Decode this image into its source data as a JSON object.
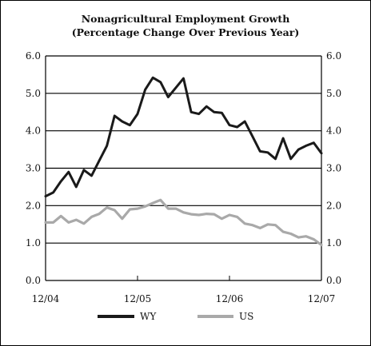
{
  "chart_data": {
    "type": "line",
    "title": "Nonagricultural Employment Growth",
    "subtitle": "(Percentage Change Over Previous Year)",
    "xlabel": "",
    "ylabel": "",
    "ylim": [
      0,
      6
    ],
    "y_ticks": [
      "0.0",
      "1.0",
      "2.0",
      "3.0",
      "4.0",
      "5.0",
      "6.0"
    ],
    "x_tick_labels": [
      "12/04",
      "12/05",
      "12/06",
      "12/07"
    ],
    "grid": "horizontal",
    "legend": "bottom",
    "x": [
      "12/04",
      "1/05",
      "2/05",
      "3/05",
      "4/05",
      "5/05",
      "6/05",
      "7/05",
      "8/05",
      "9/05",
      "10/05",
      "11/05",
      "12/05",
      "1/06",
      "2/06",
      "3/06",
      "4/06",
      "5/06",
      "6/06",
      "7/06",
      "8/06",
      "9/06",
      "10/06",
      "11/06",
      "12/06",
      "1/07",
      "2/07",
      "3/07",
      "4/07",
      "5/07",
      "6/07",
      "7/07",
      "8/07",
      "9/07",
      "10/07",
      "11/07",
      "12/07"
    ],
    "series": [
      {
        "name": "WY",
        "color": "#1a1a1a",
        "values": [
          2.25,
          2.35,
          2.65,
          2.9,
          2.5,
          2.95,
          2.8,
          3.2,
          3.6,
          4.4,
          4.25,
          4.15,
          4.45,
          5.1,
          5.42,
          5.3,
          4.9,
          5.15,
          5.4,
          4.5,
          4.45,
          4.65,
          4.5,
          4.48,
          4.15,
          4.1,
          4.25,
          3.85,
          3.45,
          3.42,
          3.25,
          3.8,
          3.25,
          3.5,
          3.6,
          3.68,
          3.4
        ]
      },
      {
        "name": "US",
        "color": "#a9a9a9",
        "values": [
          1.55,
          1.55,
          1.72,
          1.55,
          1.62,
          1.52,
          1.7,
          1.78,
          1.95,
          1.88,
          1.65,
          1.9,
          1.92,
          1.98,
          2.07,
          2.15,
          1.92,
          1.92,
          1.82,
          1.77,
          1.75,
          1.78,
          1.77,
          1.65,
          1.75,
          1.7,
          1.52,
          1.48,
          1.4,
          1.5,
          1.48,
          1.3,
          1.25,
          1.15,
          1.18,
          1.1,
          0.95
        ]
      }
    ]
  }
}
